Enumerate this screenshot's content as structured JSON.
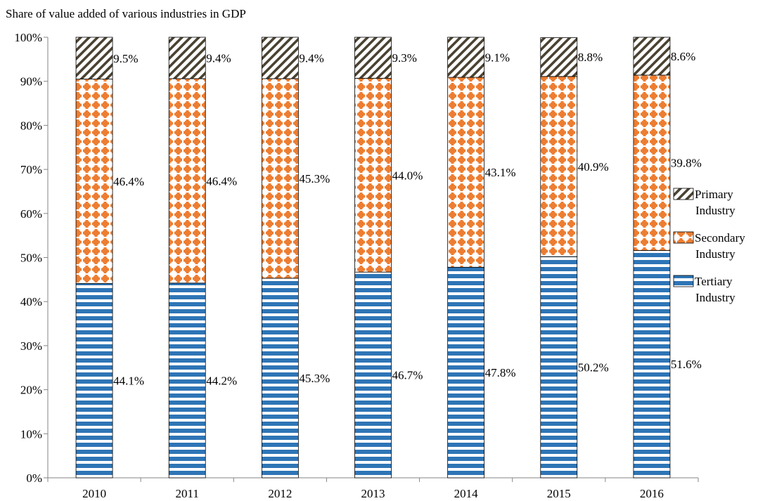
{
  "chart_data": {
    "type": "bar",
    "stacked": true,
    "title": "Share of value added of various industries in GDP",
    "xlabel": "",
    "ylabel": "",
    "ylim": [
      0,
      100
    ],
    "yticks": [
      "0%",
      "10%",
      "20%",
      "30%",
      "40%",
      "50%",
      "60%",
      "70%",
      "80%",
      "90%",
      "100%"
    ],
    "grid": false,
    "legend_position": "right",
    "categories": [
      "2010",
      "2011",
      "2012",
      "2013",
      "2014",
      "2015",
      "2016"
    ],
    "series": [
      {
        "name": "Tertiary Industry",
        "legend_lines": [
          "Tertiary",
          "Industry"
        ],
        "values": [
          44.1,
          44.2,
          45.3,
          46.7,
          47.8,
          50.2,
          51.6
        ],
        "labels": [
          "44.1%",
          "44.2%",
          "45.3%",
          "46.7%",
          "47.8%",
          "50.2%",
          "51.6%"
        ],
        "color": "#2e75b6",
        "pattern": "horizontal-stripes"
      },
      {
        "name": "Secondary Industry",
        "legend_lines": [
          "Secondary",
          "Industry"
        ],
        "values": [
          46.4,
          46.4,
          45.3,
          44.0,
          43.1,
          40.9,
          39.8
        ],
        "labels": [
          "46.4%",
          "46.4%",
          "45.3%",
          "44.0%",
          "43.1%",
          "40.9%",
          "39.8%"
        ],
        "color": "#ed7d31",
        "pattern": "plus-dots"
      },
      {
        "name": "Primary Industry",
        "legend_lines": [
          "Primary",
          "Industry"
        ],
        "values": [
          9.5,
          9.4,
          9.4,
          9.3,
          9.1,
          8.8,
          8.6
        ],
        "labels": [
          "9.5%",
          "9.4%",
          "9.4%",
          "9.3%",
          "9.1%",
          "8.8%",
          "8.6%"
        ],
        "color": "#4a4232",
        "pattern": "diagonal-stripes"
      }
    ]
  }
}
